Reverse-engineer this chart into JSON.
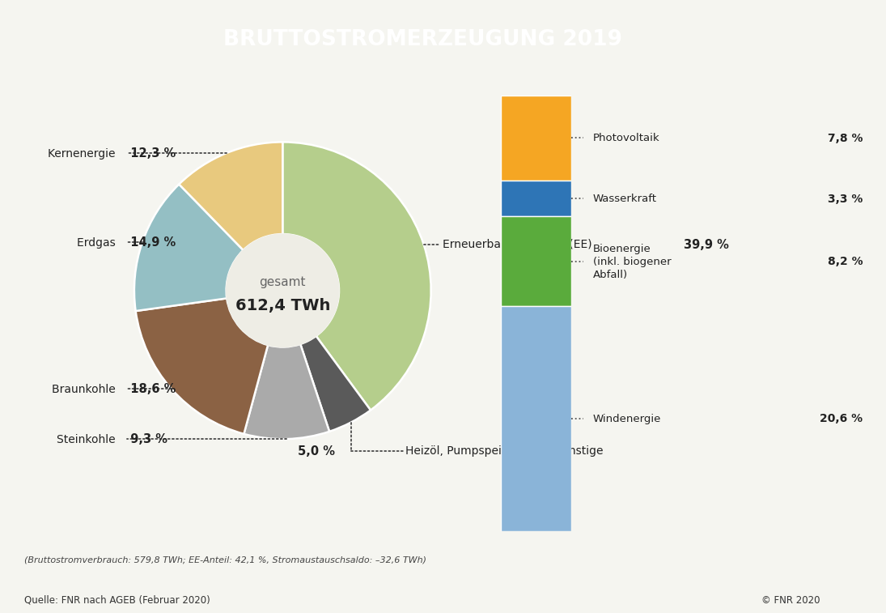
{
  "title": "BRUTTOSTROMERZEUGUNG 2019",
  "title_bg": "#6db33f",
  "title_color": "#ffffff",
  "center_label": "gesamt",
  "center_value": "612,4 TWh",
  "bg_color": "#f5f5f0",
  "footer_italic": "(Bruttostromverbrauch: 579,8 TWh; EE-Anteil: 42,1 %, Stromaustauschsaldo: –32,6 TWh)",
  "footer_source": "Quelle: FNR nach AGEB (Februar 2020)",
  "footer_right": "© FNR 2020",
  "outer_slices": [
    {
      "label": "Erneuerbare Energien (EE)",
      "value": 39.9,
      "color": "#b5ce8c",
      "side": "right"
    },
    {
      "label": "Heizöl, Pumpspeicher und Sonstige",
      "value": 5.0,
      "color": "#5a5a5a",
      "side": "bottom"
    },
    {
      "label": "Steinkohle",
      "value": 9.3,
      "color": "#aaaaaa",
      "side": "left"
    },
    {
      "label": "Braunkohle",
      "value": 18.6,
      "color": "#8b6244",
      "side": "left"
    },
    {
      "label": "Erdgas",
      "value": 14.9,
      "color": "#94bfc4",
      "side": "left"
    },
    {
      "label": "Kernenergie",
      "value": 12.3,
      "color": "#e8c97e",
      "side": "left"
    }
  ],
  "inner_slices": [
    {
      "label": "Photovoltaik",
      "value": 7.8,
      "color": "#f5a623"
    },
    {
      "label": "Wasserkraft",
      "value": 3.3,
      "color": "#2e75b6"
    },
    {
      "label": "Bioenergie\n(inkl. biogener\nAbfall)",
      "label_short": "Bioenergie\n(inkl. biogener\nAbfall)",
      "value": 8.2,
      "color": "#5aab3c"
    },
    {
      "label": "Windenergie",
      "value": 20.6,
      "color": "#8ab4d8"
    }
  ]
}
